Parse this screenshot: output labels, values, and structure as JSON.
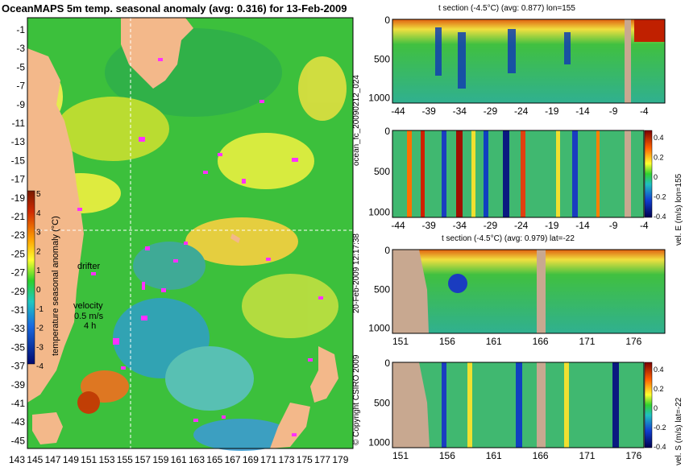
{
  "map": {
    "title": "OceanMAPS 5m temp. seasonal anomaly (avg: 0.316) for 13-Feb-2009",
    "lat_labels": [
      "-1",
      "-3",
      "-5",
      "-7",
      "-9",
      "-11",
      "-13",
      "-15",
      "-17",
      "-19",
      "-21",
      "-23",
      "-25",
      "-27",
      "-29",
      "-31",
      "-33",
      "-35",
      "-37",
      "-39",
      "-41",
      "-43",
      "-45"
    ],
    "lon_labels": [
      "143",
      "145",
      "147",
      "149",
      "151",
      "153",
      "155",
      "157",
      "159",
      "161",
      "163",
      "165",
      "167",
      "169",
      "171",
      "173",
      "175",
      "177",
      "179"
    ],
    "colorbar": {
      "label": "temperature seasonal anomaly (°C)",
      "ticks": [
        "5",
        "4",
        "3",
        "2",
        "1",
        "0",
        "-1",
        "-2",
        "-3",
        "-4"
      ]
    },
    "drifter_label": "drifter",
    "velocity_label": "velocity",
    "velocity_value": "0.5 m/s",
    "velocity_sub": "4 h"
  },
  "sections": {
    "top_title": "t section (-4.5°C) (avg: 0.877) lon=155",
    "bottom_title": "t section (-4.5°C) (avg: 0.979) lat=-22",
    "depth_ticks": [
      "0",
      "500",
      "1000"
    ],
    "lat_ticks": [
      "-44",
      "-39",
      "-34",
      "-29",
      "-24",
      "-19",
      "-14",
      "-9",
      "-4"
    ],
    "lon_ticks": [
      "151",
      "156",
      "161",
      "166",
      "171",
      "176"
    ],
    "cb_top_label": "vel. E (m/s) lon=155",
    "cb_bottom_label": "vel. S (m/s) lat=-22",
    "cb_ticks": [
      "0.4",
      "0.2",
      "0",
      "-0.2",
      "-0.4"
    ]
  },
  "side_text": {
    "forecast_id": "ocean_fc_20090212_024",
    "timestamp": "20-Feb-2009 12:17:38",
    "copyright": "© Copyright CSIRO 2009"
  }
}
